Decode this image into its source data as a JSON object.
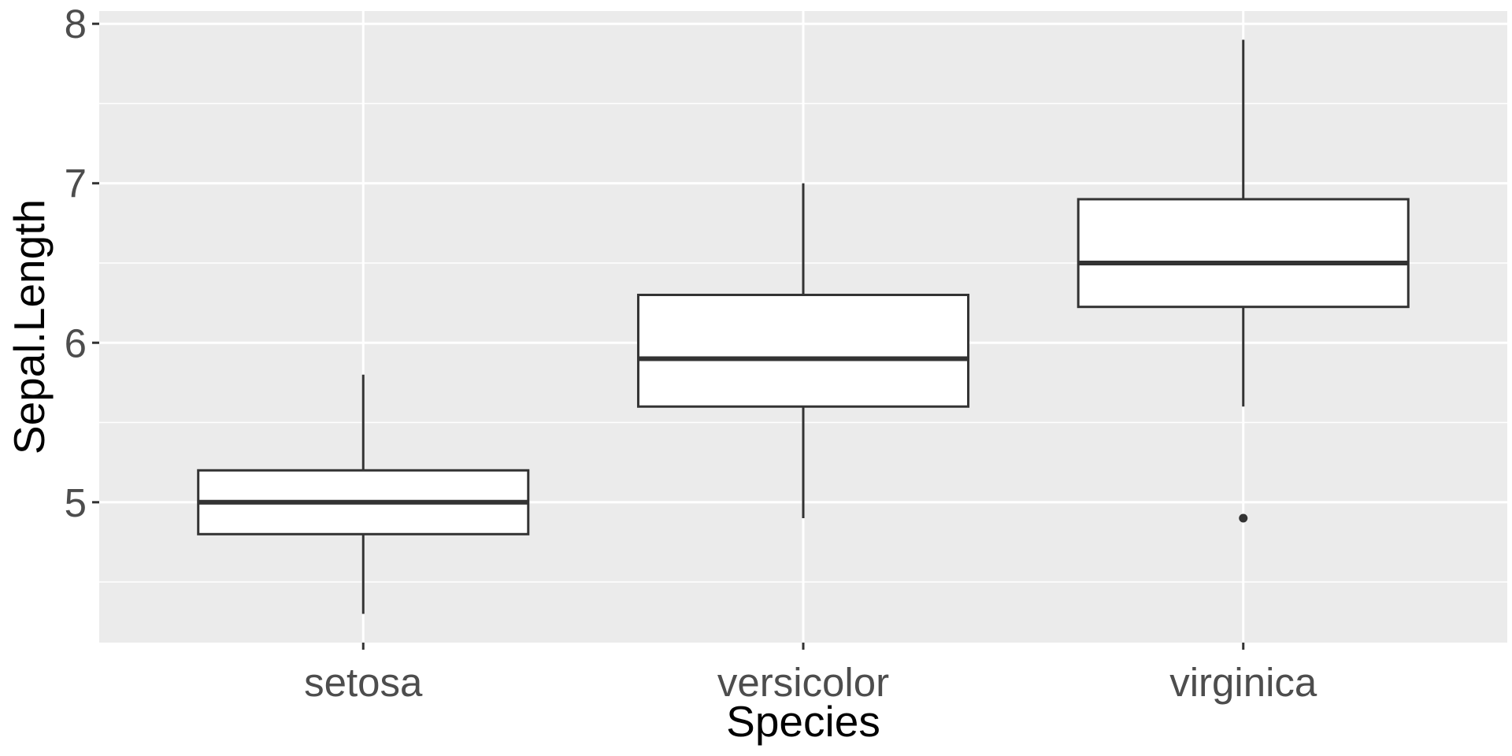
{
  "chart_data": {
    "type": "boxplot",
    "xlabel": "Species",
    "ylabel": "Sepal.Length",
    "ylim": [
      4.12,
      8.08
    ],
    "y_ticks": [
      5,
      6,
      7,
      8
    ],
    "y_minor_ticks": [
      4.5,
      5.5,
      6.5,
      7.5
    ],
    "categories": [
      "setosa",
      "versicolor",
      "virginica"
    ],
    "boxes": [
      {
        "category": "setosa",
        "whisker_low": 4.3,
        "q1": 4.8,
        "median": 5.0,
        "q3": 5.2,
        "whisker_high": 5.8,
        "outliers": []
      },
      {
        "category": "versicolor",
        "whisker_low": 4.9,
        "q1": 5.6,
        "median": 5.9,
        "q3": 6.3,
        "whisker_high": 7.0,
        "outliers": []
      },
      {
        "category": "virginica",
        "whisker_low": 5.6,
        "q1": 6.225,
        "median": 6.5,
        "q3": 6.9,
        "whisker_high": 7.9,
        "outliers": [
          4.9
        ]
      }
    ],
    "grid": true,
    "legend": "none",
    "colors": {
      "panel": "#ebebeb",
      "grid": "#ffffff",
      "box_fill": "#ffffff",
      "box_line": "#333333"
    }
  }
}
